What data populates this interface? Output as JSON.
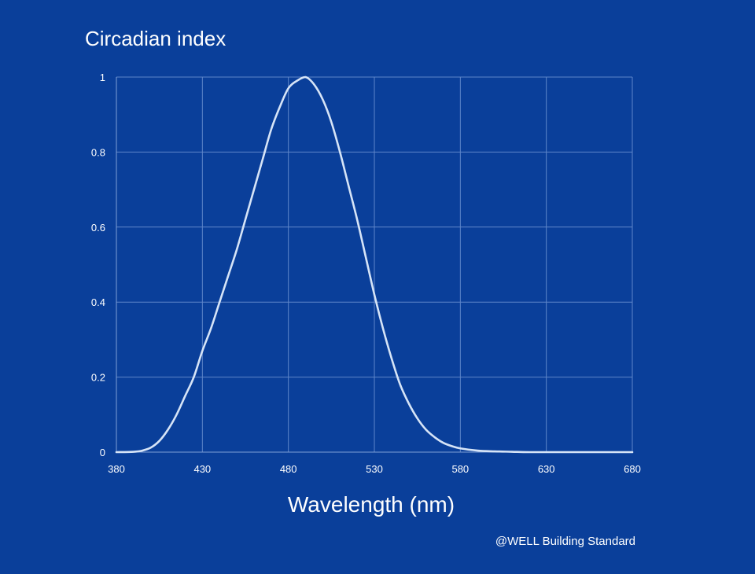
{
  "chart_data": {
    "type": "line",
    "title": "Circadian index",
    "xlabel": "Wavelength (nm)",
    "ylabel": "",
    "xlim": [
      380,
      680
    ],
    "ylim": [
      0,
      1
    ],
    "grid": true,
    "x_ticks": [
      "380",
      "430",
      "480",
      "530",
      "580",
      "630",
      "680"
    ],
    "y_ticks": [
      "0",
      "0.2",
      "0.4",
      "0.6",
      "0.8",
      "1"
    ],
    "series": [
      {
        "x": [
          380,
          390,
          395,
          400,
          405,
          410,
          415,
          420,
          425,
          430,
          435,
          440,
          445,
          450,
          455,
          460,
          465,
          470,
          475,
          480,
          485,
          490,
          495,
          500,
          505,
          510,
          515,
          520,
          525,
          530,
          535,
          540,
          545,
          550,
          555,
          560,
          565,
          570,
          575,
          580,
          590,
          600,
          610,
          620,
          640,
          680
        ],
        "y": [
          0,
          0.001,
          0.004,
          0.012,
          0.03,
          0.06,
          0.1,
          0.15,
          0.2,
          0.27,
          0.33,
          0.4,
          0.47,
          0.54,
          0.62,
          0.7,
          0.78,
          0.86,
          0.92,
          0.97,
          0.99,
          1.0,
          0.98,
          0.94,
          0.88,
          0.8,
          0.71,
          0.62,
          0.52,
          0.42,
          0.33,
          0.25,
          0.18,
          0.13,
          0.09,
          0.06,
          0.04,
          0.025,
          0.016,
          0.01,
          0.004,
          0.002,
          0.001,
          0,
          0,
          0
        ]
      }
    ],
    "colors": {
      "background": "#0a3f9a",
      "line": "#d6e4f7",
      "grid": "#5f86c9",
      "text": "#ffffff"
    }
  },
  "footer": {
    "source": "@WELL Building Standard"
  }
}
